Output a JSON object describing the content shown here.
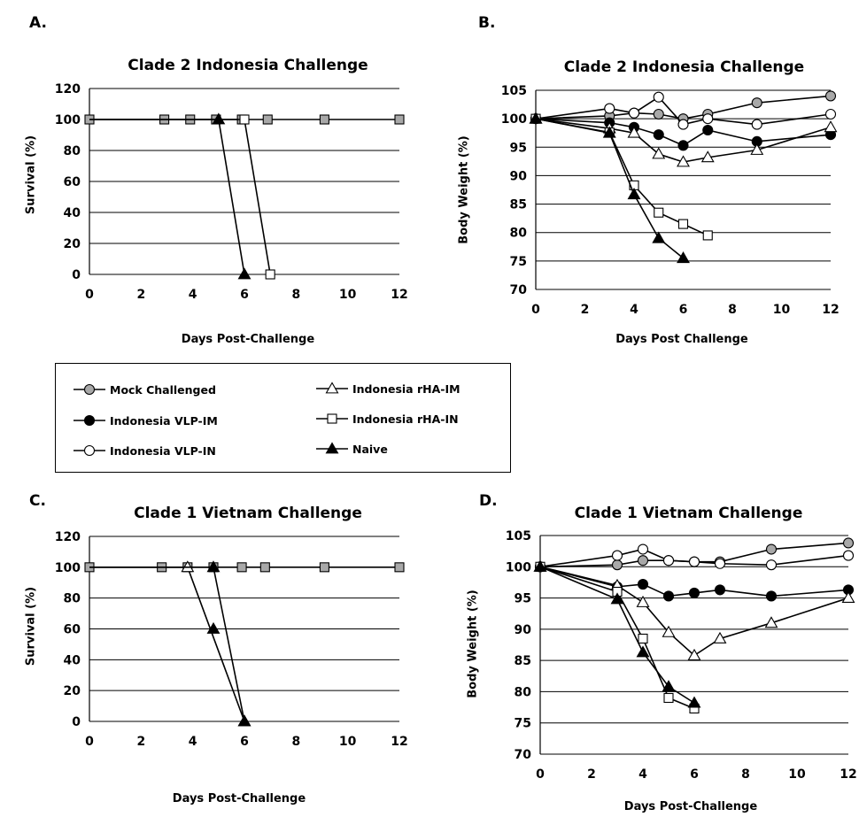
{
  "panels": {
    "a": {
      "letter": "A.",
      "title": "Clade 2 Indonesia Challenge",
      "xlabel": "Days Post-Challenge",
      "ylabel": "Survival (%)"
    },
    "b": {
      "letter": "B.",
      "title": "Clade 2 Indonesia Challenge",
      "xlabel": "Days Post Challenge",
      "ylabel": "Body Weight (%)"
    },
    "c": {
      "letter": "C.",
      "title": "Clade 1 Vietnam Challenge",
      "xlabel": "Days Post-Challenge",
      "ylabel": "Survival (%)"
    },
    "d": {
      "letter": "D.",
      "title": "Clade 1 Vietnam Challenge",
      "xlabel": "Days Post-Challenge",
      "ylabel": "Body Weight (%)"
    }
  },
  "legend": {
    "items": [
      {
        "label": "Mock Challenged",
        "marker": "circle",
        "fill": "#a8a8a8"
      },
      {
        "label": "Indonesia VLP-IM",
        "marker": "circle",
        "fill": "#000000"
      },
      {
        "label": "Indonesia VLP-IN",
        "marker": "circle",
        "fill": "#ffffff"
      },
      {
        "label": "Indonesia rHA-IM",
        "marker": "triangle",
        "fill": "#ffffff"
      },
      {
        "label": "Indonesia rHA-IN",
        "marker": "square",
        "fill": "#ffffff"
      },
      {
        "label": "Naive",
        "marker": "triangle",
        "fill": "#000000"
      }
    ]
  },
  "chart_data": [
    {
      "panel": "A",
      "type": "line",
      "title": "Clade 2 Indonesia Challenge",
      "xlabel": "Days Post-Challenge",
      "ylabel": "Survival (%)",
      "xlim": [
        0,
        12
      ],
      "ylim": [
        0,
        120
      ],
      "xticks": [
        0,
        2,
        4,
        6,
        8,
        10,
        12
      ],
      "yticks": [
        0,
        20,
        40,
        60,
        80,
        100,
        120
      ],
      "grid": "horizontal",
      "series": [
        {
          "name": "Mock Challenged",
          "marker": "square",
          "fill": "#a8a8a8",
          "points": [
            [
              0,
              100
            ],
            [
              2.9,
              100
            ],
            [
              3.9,
              100
            ],
            [
              4.9,
              100
            ],
            [
              5.9,
              100
            ],
            [
              6.9,
              100
            ],
            [
              9.1,
              100
            ],
            [
              12,
              100
            ]
          ]
        },
        {
          "name": "Naive",
          "marker": "triangle",
          "fill": "#000000",
          "points": [
            [
              0,
              100
            ],
            [
              5,
              100
            ],
            [
              6,
              0
            ]
          ]
        },
        {
          "name": "Indonesia rHA-IN",
          "marker": "square",
          "fill": "#ffffff",
          "points": [
            [
              0,
              100
            ],
            [
              6,
              100
            ],
            [
              7,
              0
            ]
          ]
        }
      ]
    },
    {
      "panel": "B",
      "type": "line",
      "title": "Clade 2 Indonesia Challenge",
      "xlabel": "Days Post Challenge",
      "ylabel": "Body Weight (%)",
      "xlim": [
        0,
        12
      ],
      "ylim": [
        70,
        105
      ],
      "xticks": [
        0,
        2,
        4,
        6,
        8,
        10,
        12
      ],
      "yticks": [
        70,
        75,
        80,
        85,
        90,
        95,
        100,
        105
      ],
      "grid": "horizontal",
      "series": [
        {
          "name": "Mock Challenged",
          "marker": "circle",
          "fill": "#a8a8a8",
          "points": [
            [
              0,
              100
            ],
            [
              3,
              100.5
            ],
            [
              4,
              101
            ],
            [
              5,
              100.8
            ],
            [
              6,
              100
            ],
            [
              7,
              100.8
            ],
            [
              9,
              102.8
            ],
            [
              12,
              104
            ]
          ]
        },
        {
          "name": "Indonesia VLP-IM",
          "marker": "circle",
          "fill": "#000000",
          "points": [
            [
              0,
              100
            ],
            [
              3,
              99.3
            ],
            [
              4,
              98.5
            ],
            [
              5,
              97.2
            ],
            [
              6,
              95.3
            ],
            [
              7,
              98
            ],
            [
              9,
              96
            ],
            [
              12,
              97.2
            ]
          ]
        },
        {
          "name": "Indonesia VLP-IN",
          "marker": "circle",
          "fill": "#ffffff",
          "points": [
            [
              0,
              100
            ],
            [
              3,
              101.8
            ],
            [
              4,
              101
            ],
            [
              5,
              103.8
            ],
            [
              6,
              99
            ],
            [
              7,
              100
            ],
            [
              9,
              99
            ],
            [
              12,
              100.8
            ]
          ]
        },
        {
          "name": "Indonesia rHA-IM",
          "marker": "triangle",
          "fill": "#ffffff",
          "points": [
            [
              0,
              100
            ],
            [
              3,
              98.3
            ],
            [
              4,
              97.5
            ],
            [
              5,
              93.8
            ],
            [
              6,
              92.4
            ],
            [
              7,
              93.2
            ],
            [
              9,
              94.5
            ],
            [
              12,
              98.5
            ]
          ]
        },
        {
          "name": "Indonesia rHA-IN",
          "marker": "square",
          "fill": "#ffffff",
          "points": [
            [
              0,
              100
            ],
            [
              3,
              97.6
            ],
            [
              4,
              88.3
            ],
            [
              5,
              83.5
            ],
            [
              6,
              81.5
            ],
            [
              7,
              79.5
            ]
          ]
        },
        {
          "name": "Naive",
          "marker": "triangle",
          "fill": "#000000",
          "points": [
            [
              0,
              100
            ],
            [
              3,
              97.5
            ],
            [
              4,
              86.7
            ],
            [
              5,
              79
            ],
            [
              6,
              75.5
            ]
          ]
        }
      ]
    },
    {
      "panel": "C",
      "type": "line",
      "title": "Clade 1 Vietnam Challenge",
      "xlabel": "Days Post-Challenge",
      "ylabel": "Survival (%)",
      "xlim": [
        0,
        12
      ],
      "ylim": [
        0,
        120
      ],
      "xticks": [
        0,
        2,
        4,
        6,
        8,
        10,
        12
      ],
      "yticks": [
        0,
        20,
        40,
        60,
        80,
        100,
        120
      ],
      "grid": "horizontal",
      "series": [
        {
          "name": "Mock Challenged",
          "marker": "square",
          "fill": "#a8a8a8",
          "points": [
            [
              0,
              100
            ],
            [
              2.8,
              100
            ],
            [
              3.8,
              100
            ],
            [
              4.8,
              100
            ],
            [
              5.9,
              100
            ],
            [
              6.8,
              100
            ],
            [
              9.1,
              100
            ],
            [
              12,
              100
            ]
          ]
        },
        {
          "name": "Indonesia rHA-IM",
          "marker": "triangle",
          "fill": "#ffffff",
          "points": [
            [
              0,
              100
            ],
            [
              3.8,
              100
            ],
            [
              6,
              0
            ]
          ]
        },
        {
          "name": "Naive",
          "marker": "triangle",
          "fill": "#000000",
          "points": [
            [
              0,
              100
            ],
            [
              4.8,
              100
            ],
            [
              6,
              0
            ]
          ]
        },
        {
          "name": "Naive (day 5)",
          "marker": "triangle",
          "fill": "#000000",
          "points": [
            [
              4.8,
              60
            ]
          ]
        }
      ]
    },
    {
      "panel": "D",
      "type": "line",
      "title": "Clade 1 Vietnam Challenge",
      "xlabel": "Days Post-Challenge",
      "ylabel": "Body Weight (%)",
      "xlim": [
        0,
        12
      ],
      "ylim": [
        70,
        105
      ],
      "xticks": [
        0,
        2,
        4,
        6,
        8,
        10,
        12
      ],
      "yticks": [
        70,
        75,
        80,
        85,
        90,
        95,
        100,
        105
      ],
      "grid": "horizontal",
      "series": [
        {
          "name": "Mock Challenged",
          "marker": "circle",
          "fill": "#a8a8a8",
          "points": [
            [
              0,
              100
            ],
            [
              3,
              100.3
            ],
            [
              4,
              101
            ],
            [
              5,
              101
            ],
            [
              6,
              100.8
            ],
            [
              7,
              100.8
            ],
            [
              9,
              102.8
            ],
            [
              12,
              103.8
            ]
          ]
        },
        {
          "name": "Indonesia VLP-IN",
          "marker": "circle",
          "fill": "#ffffff",
          "points": [
            [
              0,
              100
            ],
            [
              3,
              101.8
            ],
            [
              4,
              102.8
            ],
            [
              5,
              101
            ],
            [
              6,
              100.8
            ],
            [
              7,
              100.5
            ],
            [
              9,
              100.3
            ],
            [
              12,
              101.8
            ]
          ]
        },
        {
          "name": "Indonesia VLP-IM",
          "marker": "circle",
          "fill": "#000000",
          "points": [
            [
              0,
              100
            ],
            [
              3,
              96.8
            ],
            [
              4,
              97.2
            ],
            [
              5,
              95.3
            ],
            [
              6,
              95.8
            ],
            [
              7,
              96.3
            ],
            [
              9,
              95.3
            ],
            [
              12,
              96.3
            ]
          ]
        },
        {
          "name": "Indonesia rHA-IM",
          "marker": "triangle",
          "fill": "#ffffff",
          "points": [
            [
              0,
              100
            ],
            [
              3,
              97
            ],
            [
              4,
              94.3
            ],
            [
              5,
              89.5
            ],
            [
              6,
              85.8
            ],
            [
              7,
              88.5
            ],
            [
              9,
              91
            ],
            [
              12,
              95
            ]
          ]
        },
        {
          "name": "Indonesia rHA-IN",
          "marker": "square",
          "fill": "#ffffff",
          "points": [
            [
              0,
              100
            ],
            [
              3,
              96
            ],
            [
              4,
              88.5
            ],
            [
              5,
              79
            ],
            [
              6,
              77.3
            ]
          ]
        },
        {
          "name": "Naive",
          "marker": "triangle",
          "fill": "#000000",
          "points": [
            [
              0,
              100
            ],
            [
              3,
              94.8
            ],
            [
              4,
              86.3
            ],
            [
              5,
              80.8
            ],
            [
              6,
              78.2
            ]
          ]
        }
      ]
    }
  ]
}
